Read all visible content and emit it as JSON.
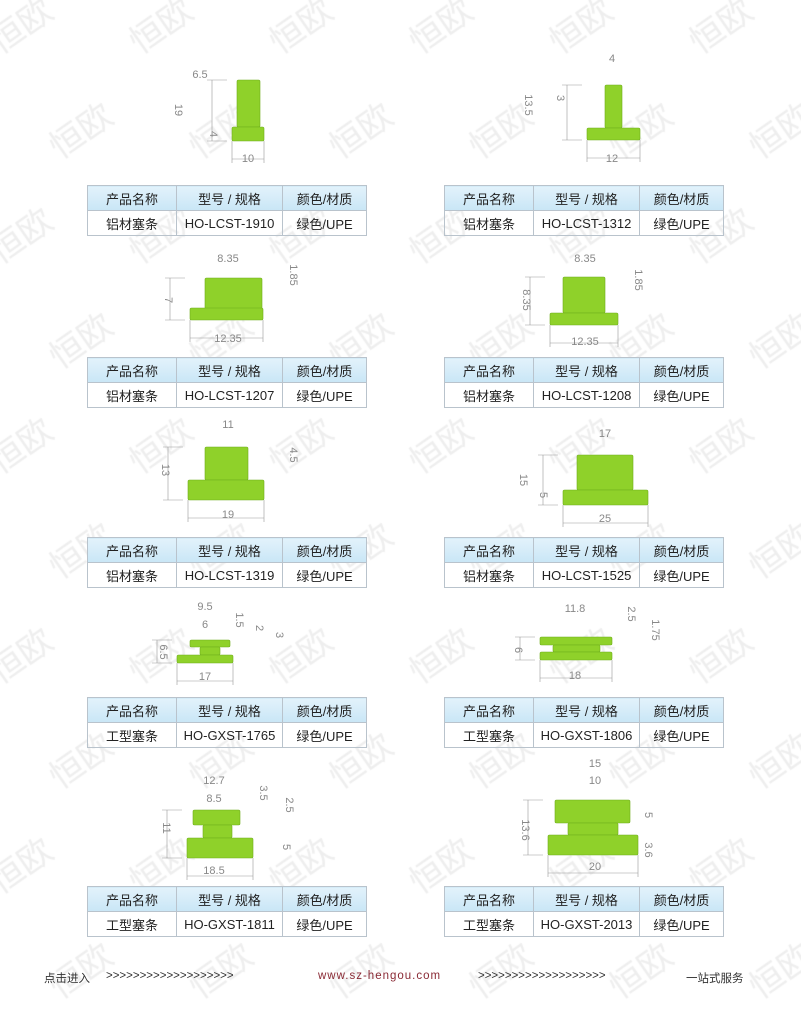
{
  "watermark": "恒欧",
  "accent_color": "#8fd12a",
  "table_header": [
    "产品名称",
    "型号 / 规格",
    "颜色/材质"
  ],
  "products": [
    {
      "name": "铝材塞条",
      "model": "HO-LCST-1910",
      "material": "绿色/UPE",
      "dims": [
        "6.5",
        "19",
        "4",
        "10"
      ]
    },
    {
      "name": "铝材塞条",
      "model": "HO-LCST-1312",
      "material": "绿色/UPE",
      "dims": [
        "4",
        "13.5",
        "3",
        "12"
      ]
    },
    {
      "name": "铝材塞条",
      "model": "HO-LCST-1207",
      "material": "绿色/UPE",
      "dims": [
        "8.35",
        "7",
        "1.85",
        "12.35"
      ]
    },
    {
      "name": "铝材塞条",
      "model": "HO-LCST-1208",
      "material": "绿色/UPE",
      "dims": [
        "8.35",
        "8.35",
        "1.85",
        "12.35"
      ]
    },
    {
      "name": "铝材塞条",
      "model": "HO-LCST-1319",
      "material": "绿色/UPE",
      "dims": [
        "11",
        "13",
        "4.5",
        "19"
      ]
    },
    {
      "name": "铝材塞条",
      "model": "HO-LCST-1525",
      "material": "绿色/UPE",
      "dims": [
        "17",
        "15",
        "5",
        "25"
      ]
    },
    {
      "name": "工型塞条",
      "model": "HO-GXST-1765",
      "material": "绿色/UPE",
      "dims": [
        "9.5",
        "6",
        "1.5",
        "2",
        "3",
        "6.5",
        "17"
      ]
    },
    {
      "name": "工型塞条",
      "model": "HO-GXST-1806",
      "material": "绿色/UPE",
      "dims": [
        "11.8",
        "6",
        "2.5",
        "1.75",
        "18"
      ]
    },
    {
      "name": "工型塞条",
      "model": "HO-GXST-1811",
      "material": "绿色/UPE",
      "dims": [
        "12.7",
        "8.5",
        "3.5",
        "2.5",
        "11",
        "5",
        "18.5"
      ]
    },
    {
      "name": "工型塞条",
      "model": "HO-GXST-2013",
      "material": "绿色/UPE",
      "dims": [
        "15",
        "10",
        "13.6",
        "5",
        "3.6",
        "20"
      ]
    }
  ],
  "footer": {
    "left": "点击进入",
    "arrows": ">>>>>>>>>>>>>>>>>>>",
    "url": "www.sz-hengou.com",
    "right": "一站式服务"
  }
}
